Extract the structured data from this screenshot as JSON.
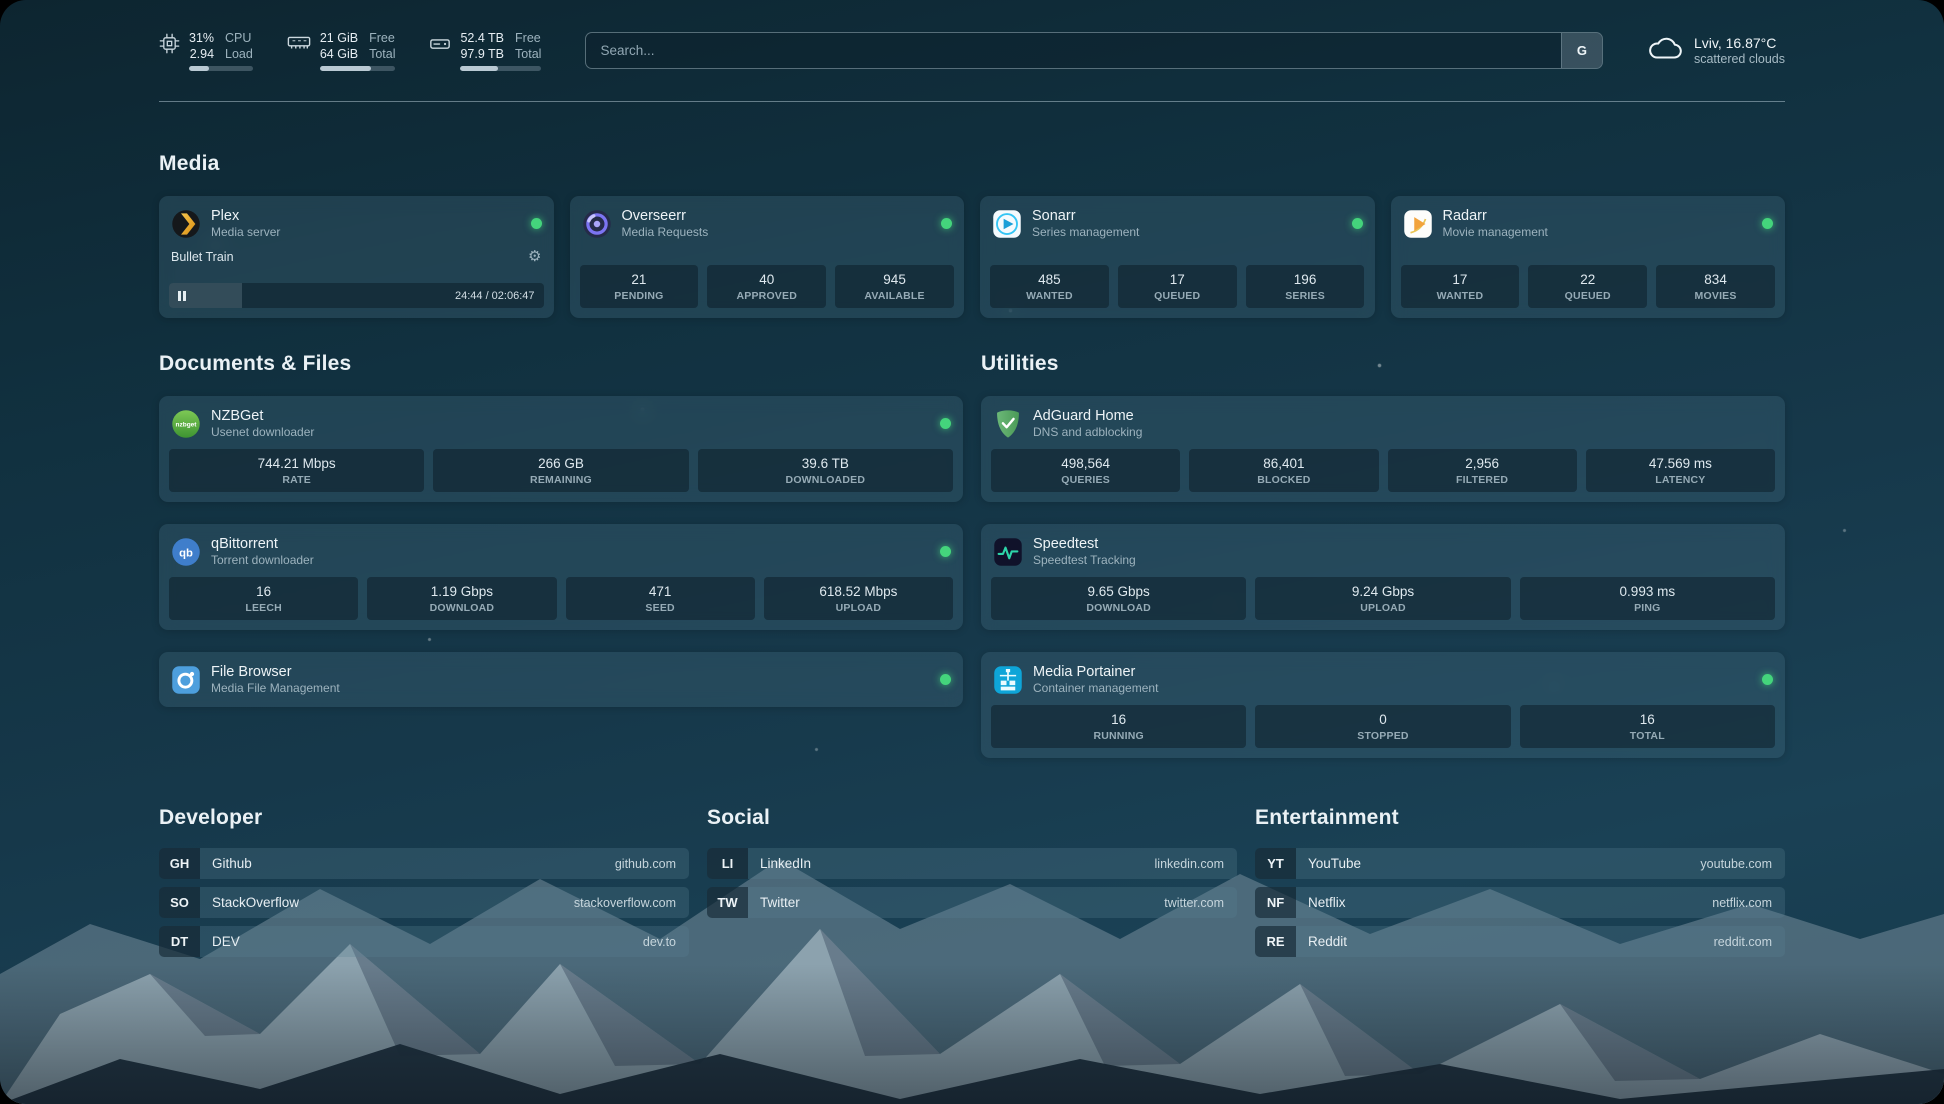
{
  "colors": {
    "status_online": "#4ade80",
    "accent_plex": "#e5a00d"
  },
  "topbar": {
    "cpu": {
      "icon": "cpu-chip-icon",
      "percent": "31%",
      "load": "2.94",
      "percent_label": "CPU",
      "load_label": "Load",
      "bar_percent": 31
    },
    "memory": {
      "icon": "memory-icon",
      "free": "21 GiB",
      "total": "64 GiB",
      "free_label": "Free",
      "total_label": "Total",
      "bar_percent": 67
    },
    "disk": {
      "icon": "disk-icon",
      "free": "52.4 TB",
      "total": "97.9 TB",
      "free_label": "Free",
      "total_label": "Total",
      "bar_percent": 46
    },
    "search": {
      "placeholder": "Search...",
      "provider_button": "G"
    },
    "weather": {
      "icon": "cloud-icon",
      "location": "Lviv, 16.87°C",
      "condition": "scattered clouds"
    }
  },
  "sections": {
    "media": {
      "title": "Media",
      "cards": [
        {
          "icon": "plex-icon",
          "name": "Plex",
          "subtitle": "Media server",
          "online": true,
          "player": {
            "title": "Bullet Train",
            "time": "24:44 / 02:06:47",
            "progress_percent": 19.5
          }
        },
        {
          "icon": "overseerr-icon",
          "name": "Overseerr",
          "subtitle": "Media Requests",
          "online": true,
          "stats": [
            {
              "value": "21",
              "label": "PENDING"
            },
            {
              "value": "40",
              "label": "APPROVED"
            },
            {
              "value": "945",
              "label": "AVAILABLE"
            }
          ]
        },
        {
          "icon": "sonarr-icon",
          "name": "Sonarr",
          "subtitle": "Series management",
          "online": true,
          "stats": [
            {
              "value": "485",
              "label": "WANTED"
            },
            {
              "value": "17",
              "label": "QUEUED"
            },
            {
              "value": "196",
              "label": "SERIES"
            }
          ]
        },
        {
          "icon": "radarr-icon",
          "name": "Radarr",
          "subtitle": "Movie management",
          "online": true,
          "stats": [
            {
              "value": "17",
              "label": "WANTED"
            },
            {
              "value": "22",
              "label": "QUEUED"
            },
            {
              "value": "834",
              "label": "MOVIES"
            }
          ]
        }
      ]
    },
    "documents": {
      "title": "Documents & Files",
      "cards": [
        {
          "icon": "nzbget-icon",
          "name": "NZBGet",
          "subtitle": "Usenet downloader",
          "online": true,
          "stats": [
            {
              "value": "744.21 Mbps",
              "label": "RATE"
            },
            {
              "value": "266 GB",
              "label": "REMAINING"
            },
            {
              "value": "39.6 TB",
              "label": "DOWNLOADED"
            }
          ]
        },
        {
          "icon": "qbittorrent-icon",
          "name": "qBittorrent",
          "subtitle": "Torrent downloader",
          "online": true,
          "stats": [
            {
              "value": "16",
              "label": "LEECH"
            },
            {
              "value": "1.19 Gbps",
              "label": "DOWNLOAD"
            },
            {
              "value": "471",
              "label": "SEED"
            },
            {
              "value": "618.52 Mbps",
              "label": "UPLOAD"
            }
          ]
        },
        {
          "icon": "filebrowser-icon",
          "name": "File Browser",
          "subtitle": "Media File Management",
          "online": true,
          "stats": []
        }
      ]
    },
    "utilities": {
      "title": "Utilities",
      "cards": [
        {
          "icon": "adguard-icon",
          "name": "AdGuard Home",
          "subtitle": "DNS and adblocking",
          "online": false,
          "stats": [
            {
              "value": "498,564",
              "label": "QUERIES"
            },
            {
              "value": "86,401",
              "label": "BLOCKED"
            },
            {
              "value": "2,956",
              "label": "FILTERED"
            },
            {
              "value": "47.569 ms",
              "label": "LATENCY"
            }
          ]
        },
        {
          "icon": "speedtest-icon",
          "name": "Speedtest",
          "subtitle": "Speedtest Tracking",
          "online": false,
          "stats": [
            {
              "value": "9.65 Gbps",
              "label": "DOWNLOAD"
            },
            {
              "value": "9.24 Gbps",
              "label": "UPLOAD"
            },
            {
              "value": "0.993 ms",
              "label": "PING"
            }
          ]
        },
        {
          "icon": "portainer-icon",
          "name": "Media Portainer",
          "subtitle": "Container management",
          "online": true,
          "stats": [
            {
              "value": "16",
              "label": "RUNNING"
            },
            {
              "value": "0",
              "label": "STOPPED"
            },
            {
              "value": "16",
              "label": "TOTAL"
            }
          ]
        }
      ]
    }
  },
  "bookmarks": {
    "groups": [
      {
        "title": "Developer",
        "items": [
          {
            "abbr": "GH",
            "name": "Github",
            "url": "github.com"
          },
          {
            "abbr": "SO",
            "name": "StackOverflow",
            "url": "stackoverflow.com"
          },
          {
            "abbr": "DT",
            "name": "DEV",
            "url": "dev.to"
          }
        ]
      },
      {
        "title": "Social",
        "items": [
          {
            "abbr": "LI",
            "name": "LinkedIn",
            "url": "linkedin.com"
          },
          {
            "abbr": "TW",
            "name": "Twitter",
            "url": "twitter.com"
          }
        ]
      },
      {
        "title": "Entertainment",
        "items": [
          {
            "abbr": "YT",
            "name": "YouTube",
            "url": "youtube.com"
          },
          {
            "abbr": "NF",
            "name": "Netflix",
            "url": "netflix.com"
          },
          {
            "abbr": "RE",
            "name": "Reddit",
            "url": "reddit.com"
          }
        ]
      }
    ]
  }
}
